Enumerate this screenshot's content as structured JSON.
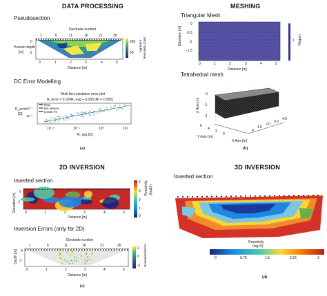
{
  "panel_a": {
    "title": "DATA PROCESSING",
    "pseudosection": {
      "title": "Pseudosection",
      "top_label": "Electrode number",
      "electrodes": [
        "1",
        "6",
        "11",
        "16",
        "21",
        "26"
      ],
      "ylabel_1": "Pseudo depth",
      "ylabel_2": "[m]",
      "yticks": [
        "0",
        "-1"
      ],
      "xticks": [
        "0",
        "1",
        "2",
        "3",
        "4",
        "5"
      ],
      "xlabel": "Distance [m]",
      "cbar_ticks": [
        "250",
        "50"
      ],
      "cbar_label_1": "Apparent",
      "cbar_label_2": "Resistivity (Ωm)"
    },
    "error": {
      "title": "DC Error Modelling",
      "plot_title": "Multi bin resistance error plot",
      "equation": "R_error = 0.026R_avg + 0.006 (R² = 0.992)",
      "ylabel_1": "R_error",
      "ylabel_2": "[Ω]",
      "yticks": [
        "10⁻¹",
        "10⁻³"
      ],
      "xticks": [
        "10⁻²",
        "10⁻¹",
        "10⁰",
        "10¹"
      ],
      "xlabel": "R_avg [Ω]",
      "legend": [
        "Raw",
        "Bin Means",
        "Linear Fit"
      ]
    },
    "caption": "(a)"
  },
  "panel_b": {
    "title": "MESHING",
    "triangular": {
      "title": "Triangular Mesh",
      "ylabel": "Elevation [m]",
      "yticks": [
        "0",
        "-0.5",
        "-1",
        "-1.5"
      ],
      "xticks": [
        "0",
        "1",
        "2",
        "3",
        "4",
        "5"
      ],
      "xlabel": "Distance [m]",
      "cbar_label": "Region",
      "cbar_tick": "1"
    },
    "tetra": {
      "title": "Tetrahedral mesh",
      "zlabel": "Z Axis [m]",
      "zticks": [
        "0",
        "-1",
        "-2"
      ],
      "ylabel": "Y Axis [m]",
      "xlabel": "X Axis [m]",
      "xticks": [
        "6",
        "4",
        "2",
        "0"
      ],
      "yticks": [
        "0",
        "1.0",
        "2.0",
        "3.0",
        "4.0"
      ]
    },
    "caption": "(b)"
  },
  "panel_c": {
    "title": "2D INVERSION",
    "inverted": {
      "title": "Inverted section",
      "ylabel": "Elevation [m]",
      "yticks": [
        "0",
        "-1"
      ],
      "xticks": [
        "0",
        "1",
        "2",
        "3",
        "4",
        "5"
      ],
      "xlabel": "Distance [m]",
      "cbar_ticks": [
        "4",
        "3",
        "2",
        "1",
        "0"
      ],
      "cbar_label_1": "Resistivity",
      "cbar_label_2": "(log10)"
    },
    "errors": {
      "title": "Inversion Errors (only for 2D)",
      "top_label": "Electrode number",
      "electrodes": [
        "1",
        "6",
        "11",
        "16",
        "21",
        "26"
      ],
      "ylabel": "Depth [m]",
      "yticks": [
        "0",
        "-1"
      ],
      "xticks": [
        "0",
        "1",
        "2",
        "3",
        "4",
        "5"
      ],
      "xlabel": "Distance [m]",
      "cbar_ticks": [
        "2",
        "0",
        "-2"
      ],
      "cbar_label": "Normalized Error"
    },
    "caption": "(c)"
  },
  "panel_d": {
    "title": "3D INVERSION",
    "inverted": {
      "title": "Inverted section",
      "cbar_label_1": "Resistivity",
      "cbar_label_2": "(log10)",
      "cbar_ticks": [
        "0",
        "0.75",
        "1.5",
        "2.25",
        "3"
      ]
    },
    "caption": "(d)"
  }
}
